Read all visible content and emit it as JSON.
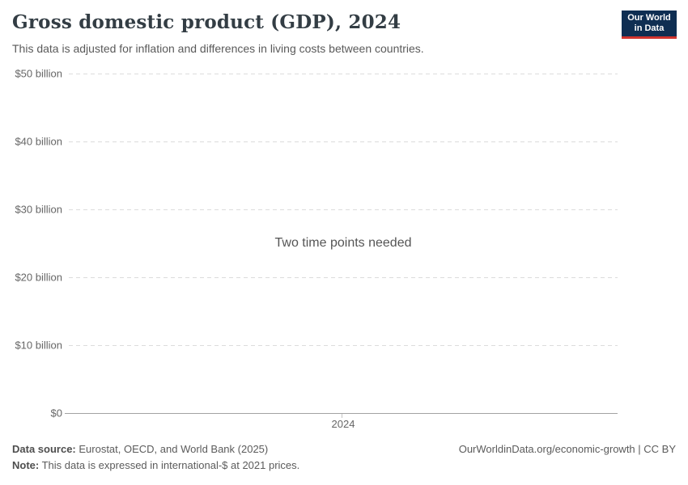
{
  "header": {
    "title": "Gross domestic product (GDP), 2024",
    "subtitle": "This data is adjusted for inflation and differences in living costs between countries.",
    "logo": {
      "line1": "Our World",
      "line2": "in Data",
      "bg_color": "#0f2e52",
      "accent_color": "#d1342e"
    }
  },
  "chart_data": {
    "type": "line",
    "title": "Gross domestic product (GDP), 2024",
    "message": "Two time points needed",
    "series": [],
    "x": {
      "ticks": [
        "2024"
      ],
      "range": [
        2024,
        2024
      ]
    },
    "y": {
      "ticks": [
        "$0",
        "$10 billion",
        "$20 billion",
        "$30 billion",
        "$40 billion",
        "$50 billion"
      ],
      "tick_values": [
        0,
        10,
        20,
        30,
        40,
        50
      ],
      "range": [
        0,
        50
      ],
      "unit": "international-$ (billion)",
      "grid": true,
      "grid_style": "dashed"
    },
    "legend": null
  },
  "footer": {
    "source_label": "Data source:",
    "source_value": " Eurostat, OECD, and World Bank (2025)",
    "note_label": "Note:",
    "note_value": " This data is expressed in international-$ at 2021 prices.",
    "link": "OurWorldinData.org/economic-growth | CC BY"
  },
  "colors": {
    "background": "#ffffff",
    "title_text": "#333d44",
    "subtitle_text": "#5a5a5a",
    "tick_text": "#666666",
    "gridline": "#dcdcdc",
    "axis_line": "#a3a3a3",
    "logo_navy": "#0f2e52",
    "logo_red": "#d1342e"
  }
}
